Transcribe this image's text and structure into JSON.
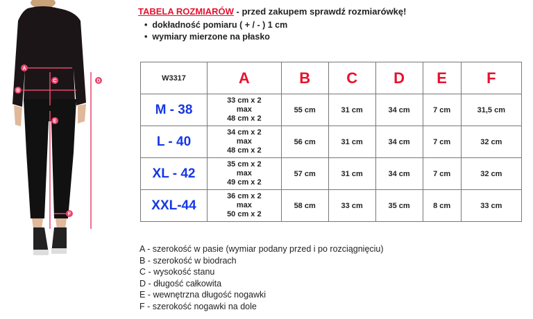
{
  "header": {
    "title": "TABELA ROZMIARÓW",
    "subtitle": " - przed zakupem sprawdź rozmiarówkę!",
    "bullets": [
      "dokładność pomiaru ( + / - ) 1 cm",
      "wymiary mierzone na płasko"
    ]
  },
  "figure": {
    "markers": [
      "A",
      "B",
      "C",
      "D",
      "E",
      "F"
    ],
    "accent": "#e8466e"
  },
  "table": {
    "model": "W3317",
    "columns": [
      "A",
      "B",
      "C",
      "D",
      "E",
      "F"
    ],
    "rows": [
      {
        "size": "M - 38",
        "a": [
          "33 cm x 2",
          "max",
          "48 cm x 2"
        ],
        "values": [
          "55 cm",
          "31 cm",
          "34 cm",
          "7 cm",
          "31,5 cm"
        ]
      },
      {
        "size": "L - 40",
        "a": [
          "34 cm x 2",
          "max",
          "48 cm x 2"
        ],
        "values": [
          "56 cm",
          "31 cm",
          "34 cm",
          "7 cm",
          "32 cm"
        ]
      },
      {
        "size": "XL - 42",
        "a": [
          "35 cm x 2",
          "max",
          "49 cm x 2"
        ],
        "values": [
          "57 cm",
          "31 cm",
          "34 cm",
          "7 cm",
          "32 cm"
        ]
      },
      {
        "size": "XXL-44",
        "a": [
          "36 cm x 2",
          "max",
          "50 cm x 2"
        ],
        "values": [
          "58 cm",
          "33 cm",
          "35 cm",
          "8 cm",
          "33 cm"
        ]
      }
    ]
  },
  "legend": [
    "A - szerokość w pasie (wymiar podany przed i po rozciągnięciu)",
    "B - szerokość w biodrach",
    "C - wysokość stanu",
    "D - długość całkowita",
    "E - wewnętrzna długość nogawki",
    "F - szerokość nogawki na dole"
  ],
  "colors": {
    "title": "#e8112d",
    "size": "#1537e6"
  }
}
